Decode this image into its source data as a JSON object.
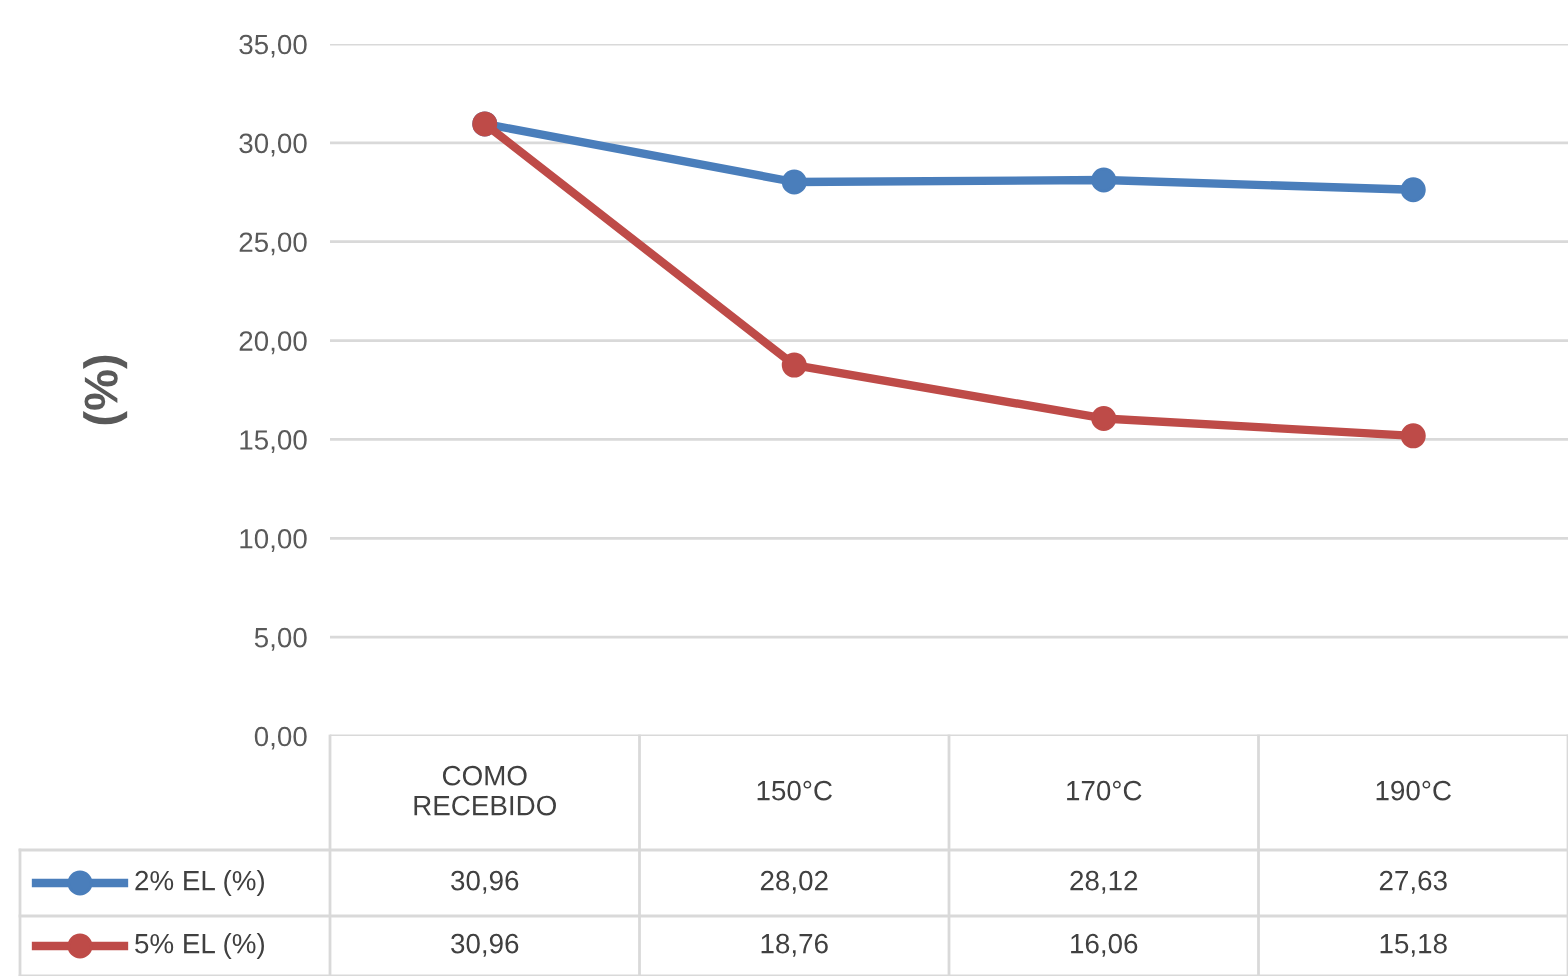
{
  "chart_data": {
    "type": "line",
    "ylabel": "(%)",
    "categories": [
      "COMO\nRECEBIDO",
      "150°C",
      "170°C",
      "190°C"
    ],
    "ylim": [
      0,
      35
    ],
    "yticks": [
      {
        "value": 0,
        "label": "0,00"
      },
      {
        "value": 5,
        "label": "5,00"
      },
      {
        "value": 10,
        "label": "10,00"
      },
      {
        "value": 15,
        "label": "15,00"
      },
      {
        "value": 20,
        "label": "20,00"
      },
      {
        "value": 25,
        "label": "25,00"
      },
      {
        "value": 30,
        "label": "30,00"
      },
      {
        "value": 35,
        "label": "35,00"
      }
    ],
    "grid": "y",
    "legend": "bottom",
    "marker": "circle",
    "line_style": "solid",
    "series": [
      {
        "name": "2% EL (%)",
        "color": "#4a7ebb",
        "values": [
          30.96,
          28.02,
          28.12,
          27.63
        ],
        "value_labels": [
          "30,96",
          "28,02",
          "28,12",
          "27,63"
        ]
      },
      {
        "name": "5% EL (%)",
        "color": "#be4b48",
        "values": [
          30.96,
          18.76,
          16.06,
          15.18
        ],
        "value_labels": [
          "30,96",
          "18,76",
          "16,06",
          "15,18"
        ]
      }
    ]
  }
}
